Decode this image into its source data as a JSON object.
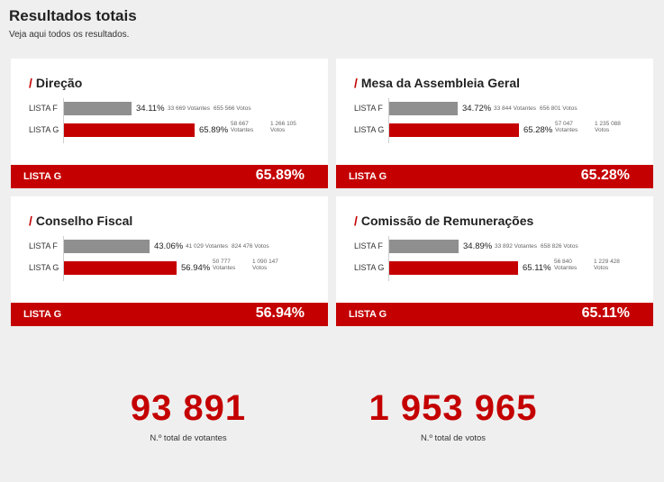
{
  "page": {
    "title": "Resultados totais",
    "subtitle": "Veja aqui todos os resultados."
  },
  "colors": {
    "accent": "#c40000",
    "loser_bar": "#8f8f8f"
  },
  "cards": [
    {
      "slash": "/",
      "title": "Direção",
      "rows": [
        {
          "label": "LISTA F",
          "pct": "34.11%",
          "share": 0.3411,
          "votantes": "33 669 Votantes",
          "votos": "655 566 Votos",
          "style": "inline"
        },
        {
          "label": "LISTA G",
          "pct": "65.89%",
          "share": 0.6589,
          "votantes": "58 667 Votantes",
          "votos": "1 266 105 Votos",
          "style": "stack"
        }
      ],
      "winner": {
        "name": "LISTA G",
        "pct": "65.89%"
      }
    },
    {
      "slash": "/",
      "title": "Mesa da Assembleia Geral",
      "rows": [
        {
          "label": "LISTA F",
          "pct": "34.72%",
          "share": 0.3472,
          "votantes": "33 844 Votantes",
          "votos": "656 801 Votos",
          "style": "inline"
        },
        {
          "label": "LISTA G",
          "pct": "65.28%",
          "share": 0.6528,
          "votantes": "57 047 Votantes",
          "votos": "1 235 088 Votos",
          "style": "stack"
        }
      ],
      "winner": {
        "name": "LISTA G",
        "pct": "65.28%"
      }
    },
    {
      "slash": "/",
      "title": "Conselho Fiscal",
      "rows": [
        {
          "label": "LISTA F",
          "pct": "43.06%",
          "share": 0.4306,
          "votantes": "41 029 Votantes",
          "votos": "824 476 Votos",
          "style": "inline"
        },
        {
          "label": "LISTA G",
          "pct": "56.94%",
          "share": 0.5694,
          "votantes": "50 777 Votantes",
          "votos": "1 090 147 Votos",
          "style": "stack"
        }
      ],
      "winner": {
        "name": "LISTA G",
        "pct": "56.94%"
      }
    },
    {
      "slash": "/",
      "title": "Comissão de Remunerações",
      "rows": [
        {
          "label": "LISTA F",
          "pct": "34.89%",
          "share": 0.3489,
          "votantes": "33 892 Votantes",
          "votos": "658 826 Votos",
          "style": "inline"
        },
        {
          "label": "LISTA G",
          "pct": "65.11%",
          "share": 0.6511,
          "votantes": "56 840 Votantes",
          "votos": "1 229 428 Votos",
          "style": "stack"
        }
      ],
      "winner": {
        "name": "LISTA G",
        "pct": "65.11%"
      }
    }
  ],
  "totals": [
    {
      "value": "93 891",
      "label": "N.º total de votantes"
    },
    {
      "value": "1 953 965",
      "label": "N.º total de votos"
    }
  ]
}
